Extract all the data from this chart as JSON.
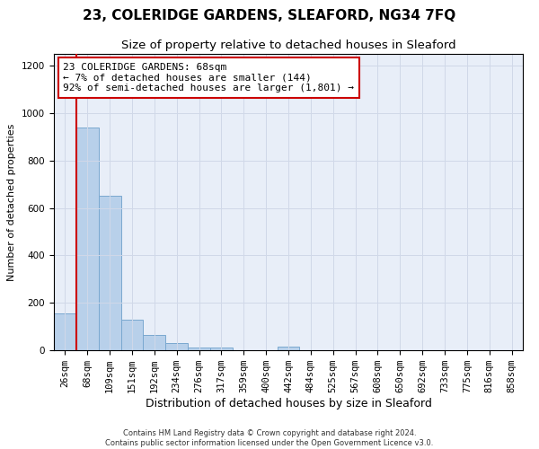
{
  "title": "23, COLERIDGE GARDENS, SLEAFORD, NG34 7FQ",
  "subtitle": "Size of property relative to detached houses in Sleaford",
  "xlabel": "Distribution of detached houses by size in Sleaford",
  "ylabel": "Number of detached properties",
  "categories": [
    "26sqm",
    "68sqm",
    "109sqm",
    "151sqm",
    "192sqm",
    "234sqm",
    "276sqm",
    "317sqm",
    "359sqm",
    "400sqm",
    "442sqm",
    "484sqm",
    "525sqm",
    "567sqm",
    "608sqm",
    "650sqm",
    "692sqm",
    "733sqm",
    "775sqm",
    "816sqm",
    "858sqm"
  ],
  "values": [
    157,
    940,
    652,
    128,
    63,
    30,
    12,
    12,
    0,
    0,
    14,
    0,
    0,
    0,
    0,
    0,
    0,
    0,
    0,
    0,
    0
  ],
  "bar_color": "#b8d0ea",
  "bar_edge_color": "#7aa8d0",
  "highlight_index": 1,
  "highlight_line_color": "#cc0000",
  "annotation_text": "23 COLERIDGE GARDENS: 68sqm\n← 7% of detached houses are smaller (144)\n92% of semi-detached houses are larger (1,801) →",
  "annotation_box_color": "#ffffff",
  "annotation_box_edge_color": "#cc0000",
  "ylim": [
    0,
    1250
  ],
  "yticks": [
    0,
    200,
    400,
    600,
    800,
    1000,
    1200
  ],
  "grid_color": "#d0d8e8",
  "bg_color": "#e8eef8",
  "footer_line1": "Contains HM Land Registry data © Crown copyright and database right 2024.",
  "footer_line2": "Contains public sector information licensed under the Open Government Licence v3.0.",
  "title_fontsize": 11,
  "subtitle_fontsize": 9.5,
  "xlabel_fontsize": 9,
  "ylabel_fontsize": 8,
  "tick_fontsize": 7.5,
  "annot_fontsize": 8,
  "footer_fontsize": 6
}
